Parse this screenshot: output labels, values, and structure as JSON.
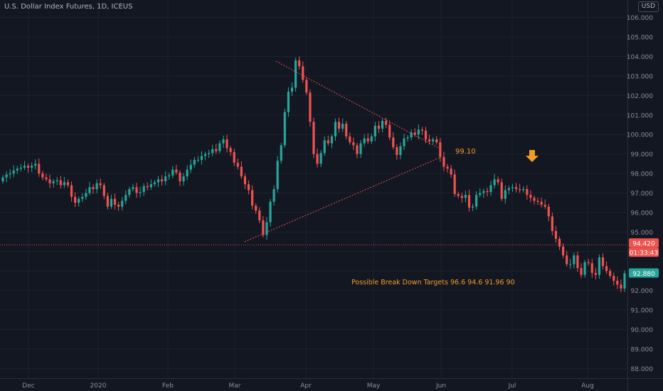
{
  "header": {
    "symbol_name": "U.S. Dollar Index Futures",
    "interval": "1D",
    "exchange": "ICEUS"
  },
  "currency_label": "USD",
  "colors": {
    "background": "#131722",
    "grid": "#1e222d",
    "up": "#26a69a",
    "down": "#ef5350",
    "trendline": "#e0504e",
    "annotation": "#f39c24",
    "axis_text": "#8b8f9a"
  },
  "chart_data": {
    "type": "candlestick",
    "title": "",
    "ylim": [
      87.5,
      106.9
    ],
    "yticks": [
      "106.000",
      "105.000",
      "104.000",
      "103.000",
      "102.000",
      "101.000",
      "100.000",
      "99.000",
      "98.000",
      "97.000",
      "96.000",
      "95.000",
      "94.000",
      "93.000",
      "92.000",
      "91.000",
      "90.000",
      "89.000",
      "88.000"
    ],
    "xticks": [
      "Dec",
      "2020",
      "Feb",
      "Mar",
      "Apr",
      "May",
      "Jun",
      "Jul",
      "Aug"
    ],
    "grid": true,
    "legend": "none",
    "closes": [
      97.8,
      97.95,
      98.0,
      98.15,
      98.25,
      98.3,
      98.4,
      98.3,
      98.4,
      98.5,
      98.0,
      97.8,
      97.7,
      97.5,
      97.6,
      97.65,
      97.4,
      97.55,
      97.4,
      96.8,
      96.5,
      96.7,
      96.8,
      97.0,
      97.3,
      97.2,
      97.5,
      97.4,
      96.85,
      96.3,
      96.7,
      96.4,
      96.3,
      96.6,
      96.9,
      97.2,
      97.3,
      97.0,
      97.05,
      97.35,
      97.3,
      97.45,
      97.55,
      97.7,
      97.6,
      97.85,
      97.9,
      98.2,
      98.05,
      97.6,
      97.85,
      98.2,
      98.45,
      98.7,
      98.7,
      98.9,
      99.0,
      99.05,
      99.25,
      99.15,
      99.55,
      99.75,
      99.3,
      99.1,
      98.55,
      98.35,
      97.85,
      97.45,
      97.15,
      96.35,
      96.1,
      95.6,
      94.85,
      95.5,
      96.55,
      97.2,
      98.65,
      99.45,
      101.15,
      102.2,
      102.4,
      103.8,
      103.5,
      102.8,
      102.15,
      100.65,
      99.0,
      98.5,
      99.05,
      99.7,
      99.55,
      99.9,
      100.65,
      100.3,
      100.55,
      99.9,
      99.6,
      99.45,
      99.0,
      99.55,
      99.8,
      99.65,
      99.9,
      100.45,
      100.3,
      100.7,
      100.5,
      99.85,
      99.35,
      98.95,
      99.4,
      99.8,
      99.85,
      100.1,
      100.0,
      100.25,
      100.2,
      99.75,
      99.65,
      99.75,
      99.6,
      98.85,
      98.35,
      98.25,
      97.95,
      96.95,
      96.85,
      96.75,
      96.9,
      96.25,
      96.3,
      96.9,
      97.0,
      97.1,
      97.05,
      97.4,
      97.7,
      97.55,
      96.7,
      97.15,
      97.25,
      97.3,
      97.2,
      97.15,
      97.2,
      96.9,
      96.75,
      96.6,
      96.55,
      96.4,
      96.3,
      95.8,
      95.05,
      94.65,
      94.25,
      93.8,
      93.35,
      93.35,
      93.8,
      93.15,
      92.8,
      93.45,
      93.4,
      92.9,
      92.8,
      93.7,
      93.25,
      93.0,
      92.75,
      92.5,
      92.3,
      92.1,
      92.88
    ],
    "annotations": {
      "apex_price": "99.10",
      "targets": "Possible Break Down Targets  96.6   94.6   91.96   90"
    },
    "price_labels": {
      "horizontal_level": "94.420",
      "countdown": "01:33:43",
      "last_price": "92.880"
    }
  }
}
